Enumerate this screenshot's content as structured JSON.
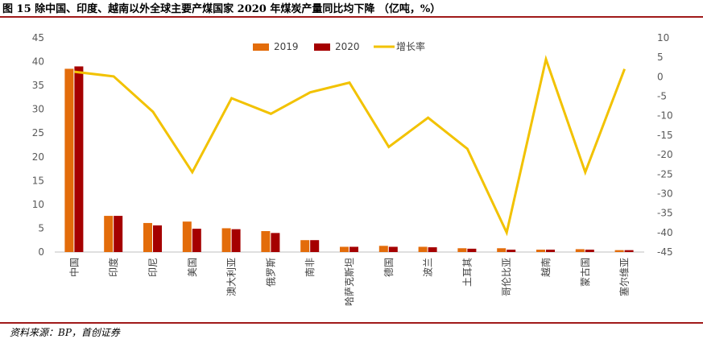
{
  "header": {
    "title": "图 15 除中国、印度、越南以外全球主要产煤国家 2020 年煤炭产量同比均下降 （亿吨，%）"
  },
  "footer": {
    "source": "资料来源：BP，首创证券"
  },
  "colors": {
    "series_2019": "#E36C0A",
    "series_2020": "#A50000",
    "growth": "#F2C200",
    "rule": "#A01A1A",
    "axis": "#BFBFBF"
  },
  "chart_data": {
    "type": "bar",
    "title": "",
    "categories": [
      "中国",
      "印度",
      "印尼",
      "美国",
      "澳大利亚",
      "俄罗斯",
      "南非",
      "哈萨克斯坦",
      "德国",
      "波兰",
      "土耳其",
      "哥伦比亚",
      "越南",
      "蒙古国",
      "塞尔维亚"
    ],
    "series": [
      {
        "name": "2019",
        "axis": "left",
        "kind": "bar",
        "values": [
          38.5,
          7.6,
          6.1,
          6.4,
          5.0,
          4.4,
          2.5,
          1.1,
          1.3,
          1.1,
          0.8,
          0.8,
          0.5,
          0.6,
          0.4
        ]
      },
      {
        "name": "2020",
        "axis": "left",
        "kind": "bar",
        "values": [
          39.0,
          7.6,
          5.6,
          4.9,
          4.8,
          4.0,
          2.5,
          1.1,
          1.1,
          1.0,
          0.7,
          0.5,
          0.5,
          0.5,
          0.4
        ]
      },
      {
        "name": "增长率",
        "axis": "right",
        "kind": "line",
        "values": [
          1.3,
          0.1,
          -9.0,
          -24.5,
          -5.5,
          -9.5,
          -4.0,
          -1.5,
          -18.0,
          -10.5,
          -18.5,
          -40.0,
          4.5,
          -24.5,
          2.0
        ]
      }
    ],
    "y_left": {
      "min": 0,
      "max": 45,
      "ticks": [
        0,
        5,
        10,
        15,
        20,
        25,
        30,
        35,
        40,
        45
      ]
    },
    "y_right": {
      "min": -45,
      "max": 10,
      "ticks": [
        -45,
        -40,
        -35,
        -30,
        -25,
        -20,
        -15,
        -10,
        -5,
        0,
        5,
        10
      ]
    },
    "xlabel": "",
    "ylabel": "",
    "legend": {
      "placement": "top-center",
      "entries": [
        "2019",
        "2020",
        "增长率"
      ]
    },
    "grid": false
  }
}
